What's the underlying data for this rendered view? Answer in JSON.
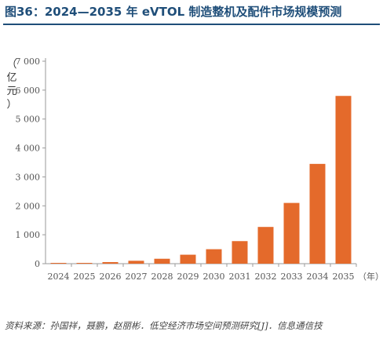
{
  "title": "图36：2024—2035 年 eVTOL 制造整机及配件市场规模预测",
  "source": "资料来源：孙国祥，聂鹏，赵丽彬．低空经济市场空间预测研究[J]．信息通信技",
  "colors": {
    "bar": "#e46a2b",
    "title": "#1f4e79",
    "axis": "#9a9a9a"
  },
  "chart_data": {
    "type": "bar",
    "ylabel": "（亿元）",
    "xunit": "（年）",
    "ylim": [
      0,
      7000
    ],
    "yticks": [
      "0",
      "1 000",
      "2 000",
      "3 000",
      "4 000",
      "5 000",
      "6 000",
      "7 000"
    ],
    "categories": [
      "2024",
      "2025",
      "2026",
      "2027",
      "2028",
      "2029",
      "2030",
      "2031",
      "2032",
      "2033",
      "2034",
      "2035"
    ],
    "values": [
      5,
      25,
      55,
      100,
      170,
      310,
      500,
      780,
      1270,
      2100,
      3450,
      5800
    ],
    "grid": false
  }
}
